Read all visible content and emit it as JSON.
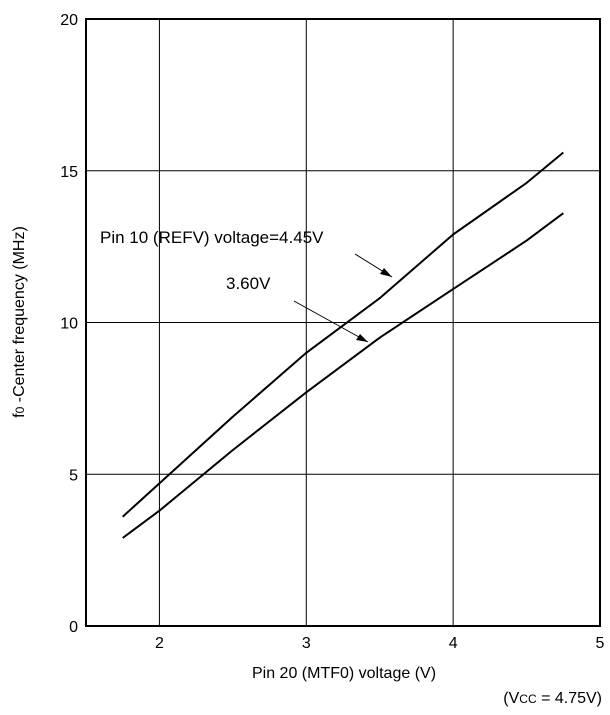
{
  "chart_data": {
    "type": "line",
    "title": "",
    "xlabel": "Pin 20 (MTF0) voltage (V)",
    "ylabel": "f0 -Center frequency (MHz)",
    "ylabel_parts": {
      "symbol": "f",
      "subscript": "0",
      "rest": " -Center frequency (MHz)"
    },
    "xlim": [
      1.5,
      5
    ],
    "ylim": [
      0,
      20
    ],
    "xticks": [
      2,
      3,
      4,
      5
    ],
    "yticks": [
      0,
      5,
      10,
      15,
      20
    ],
    "grid": true,
    "condition_note": {
      "prefix": "(V",
      "subscript": "CC",
      "suffix": " = 4.75V)"
    },
    "series": [
      {
        "name": "Pin 10 (REFV) voltage=4.45V",
        "x": [
          1.75,
          2.0,
          2.5,
          3.0,
          3.5,
          4.0,
          4.5,
          4.75
        ],
        "y": [
          3.6,
          4.7,
          6.9,
          9.0,
          10.8,
          12.9,
          14.6,
          15.6
        ]
      },
      {
        "name": "3.60V",
        "x": [
          1.75,
          2.0,
          2.5,
          3.0,
          3.5,
          4.0,
          4.5,
          4.75
        ],
        "y": [
          2.9,
          3.8,
          5.8,
          7.7,
          9.5,
          11.1,
          12.7,
          13.6
        ]
      }
    ]
  }
}
